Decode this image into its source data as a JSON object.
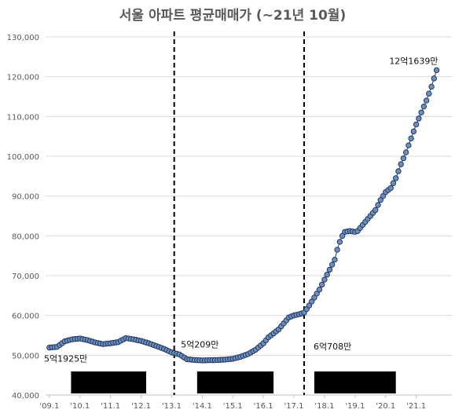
{
  "chart_data": {
    "type": "line",
    "title": "서울 아파트 평균매매가 (~21년 10월)",
    "ylim": [
      40000,
      130000
    ],
    "y_ticks": [
      "40,000",
      "50,000",
      "60,000",
      "70,000",
      "80,000",
      "90,000",
      "100,000",
      "110,000",
      "120,000",
      "130,000"
    ],
    "x_ticks": [
      {
        "label": "'09.1",
        "t": 0
      },
      {
        "label": "'10.1",
        "t": 12
      },
      {
        "label": "'11.1",
        "t": 24
      },
      {
        "label": "'12.1",
        "t": 36
      },
      {
        "label": "'13.1",
        "t": 48
      },
      {
        "label": "'14.1",
        "t": 60
      },
      {
        "label": "'15.1",
        "t": 72
      },
      {
        "label": "'16.1",
        "t": 84
      },
      {
        "label": "'17.1",
        "t": 96
      },
      {
        "label": "'18.1",
        "t": 108
      },
      {
        "label": "'19.1",
        "t": 120
      },
      {
        "label": "'20.1",
        "t": 132
      },
      {
        "label": "'21.1",
        "t": 144
      }
    ],
    "grid": true,
    "legend": "none",
    "line_color": "#1f3864",
    "marker_color": "#6f8fba",
    "anchors": [
      [
        0,
        51925
      ],
      [
        3,
        52100
      ],
      [
        6,
        53500
      ],
      [
        9,
        54000
      ],
      [
        12,
        54200
      ],
      [
        15,
        53800
      ],
      [
        18,
        53200
      ],
      [
        21,
        52800
      ],
      [
        24,
        53000
      ],
      [
        27,
        53300
      ],
      [
        30,
        54300
      ],
      [
        33,
        54000
      ],
      [
        36,
        53600
      ],
      [
        39,
        53000
      ],
      [
        42,
        52300
      ],
      [
        45,
        51600
      ],
      [
        48,
        50700
      ],
      [
        51,
        50209
      ],
      [
        54,
        49000
      ],
      [
        57,
        48800
      ],
      [
        60,
        48700
      ],
      [
        63,
        48750
      ],
      [
        66,
        48800
      ],
      [
        69,
        48900
      ],
      [
        72,
        49100
      ],
      [
        75,
        49600
      ],
      [
        78,
        50300
      ],
      [
        81,
        51400
      ],
      [
        84,
        53000
      ],
      [
        86,
        54500
      ],
      [
        88,
        55500
      ],
      [
        90,
        56500
      ],
      [
        92,
        58000
      ],
      [
        94,
        59500
      ],
      [
        96,
        60000
      ],
      [
        98,
        60300
      ],
      [
        100,
        60708
      ],
      [
        102,
        62500
      ],
      [
        104,
        64500
      ],
      [
        106,
        66500
      ],
      [
        108,
        69000
      ],
      [
        110,
        71500
      ],
      [
        112,
        74000
      ],
      [
        113,
        76500
      ],
      [
        114,
        78500
      ],
      [
        115,
        80000
      ],
      [
        116,
        81000
      ],
      [
        118,
        81200
      ],
      [
        120,
        81000
      ],
      [
        121,
        81200
      ],
      [
        122,
        82000
      ],
      [
        124,
        83500
      ],
      [
        126,
        85000
      ],
      [
        128,
        86500
      ],
      [
        130,
        89000
      ],
      [
        132,
        91000
      ],
      [
        134,
        92000
      ],
      [
        136,
        94500
      ],
      [
        138,
        98000
      ],
      [
        140,
        101000
      ],
      [
        142,
        104500
      ],
      [
        144,
        108000
      ],
      [
        146,
        111000
      ],
      [
        148,
        114000
      ],
      [
        150,
        117500
      ],
      [
        152,
        121639
      ]
    ],
    "dividers": [
      49,
      100
    ],
    "blocks": [
      {
        "t_start": 8.5,
        "t_end": 38
      },
      {
        "t_start": 58,
        "t_end": 88
      },
      {
        "t_start": 104,
        "t_end": 136
      }
    ],
    "annotations": [
      {
        "text": "5억1925만",
        "t": 0,
        "y": 51925,
        "pos": "below"
      },
      {
        "text": "5억209만",
        "t": 51,
        "y": 50209,
        "pos": "above"
      },
      {
        "text": "6억708만",
        "t": 100,
        "y": 60708,
        "pos": "below-right"
      },
      {
        "text": "12억1639만",
        "t": 152,
        "y": 121639,
        "pos": "above-left"
      }
    ]
  }
}
